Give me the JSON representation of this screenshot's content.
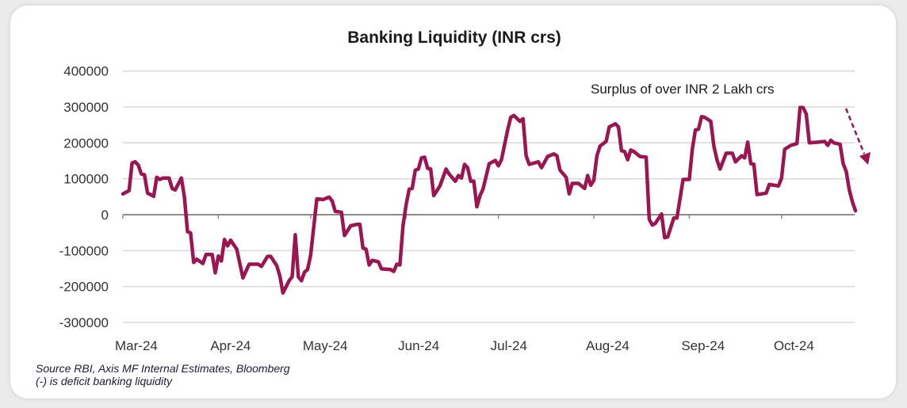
{
  "chart_data": {
    "type": "line",
    "title": "Banking Liquidity (INR crs)",
    "xlabel": "",
    "ylabel": "",
    "x_range": [
      "2024-03-01",
      "2024-10-25"
    ],
    "ylim": [
      -300000,
      400000
    ],
    "y_ticks": [
      400000,
      300000,
      200000,
      100000,
      0,
      -100000,
      -200000,
      -300000
    ],
    "y_tick_labels": [
      "400000",
      "300000",
      "200000",
      "100000",
      "0",
      "-100000",
      "-200000",
      "-300000"
    ],
    "x_ticks": [
      "2024-03-01",
      "2024-04-01",
      "2024-05-01",
      "2024-06-01",
      "2024-07-01",
      "2024-08-01",
      "2024-09-01",
      "2024-10-01"
    ],
    "x_tick_labels": [
      "Mar-24",
      "Apr-24",
      "May-24",
      "Jun-24",
      "Jul-24",
      "Aug-24",
      "Sep-24",
      "Oct-24"
    ],
    "grid": "horizontal",
    "line_color": "#9b1550",
    "annotation": "Surplus of over INR 2 Lakh crs",
    "series": [
      {
        "points": [
          [
            "2024-03-01",
            58000
          ],
          [
            "2024-03-03",
            67000
          ],
          [
            "2024-03-04",
            144000
          ],
          [
            "2024-03-05",
            147000
          ],
          [
            "2024-03-06",
            138000
          ],
          [
            "2024-03-07",
            113000
          ],
          [
            "2024-03-08",
            111000
          ],
          [
            "2024-03-09",
            60000
          ],
          [
            "2024-03-11",
            51000
          ],
          [
            "2024-03-12",
            104000
          ],
          [
            "2024-03-13",
            98000
          ],
          [
            "2024-03-14",
            102000
          ],
          [
            "2024-03-16",
            102000
          ],
          [
            "2024-03-17",
            73000
          ],
          [
            "2024-03-18",
            69000
          ],
          [
            "2024-03-20",
            102000
          ],
          [
            "2024-03-21",
            49000
          ],
          [
            "2024-03-22",
            -47000
          ],
          [
            "2024-03-23",
            -51000
          ],
          [
            "2024-03-24",
            -133000
          ],
          [
            "2024-03-25",
            -124000
          ],
          [
            "2024-03-27",
            -136000
          ],
          [
            "2024-03-28",
            -111000
          ],
          [
            "2024-03-30",
            -111000
          ],
          [
            "2024-03-31",
            -162000
          ],
          [
            "2024-04-01",
            -115000
          ],
          [
            "2024-04-02",
            -129000
          ],
          [
            "2024-04-03",
            -69000
          ],
          [
            "2024-04-04",
            -87000
          ],
          [
            "2024-04-05",
            -71000
          ],
          [
            "2024-04-07",
            -96000
          ],
          [
            "2024-04-09",
            -176000
          ],
          [
            "2024-04-11",
            -138000
          ],
          [
            "2024-04-14",
            -138000
          ],
          [
            "2024-04-15",
            -144000
          ],
          [
            "2024-04-17",
            -116000
          ],
          [
            "2024-04-18",
            -116000
          ],
          [
            "2024-04-20",
            -142000
          ],
          [
            "2024-04-21",
            -171000
          ],
          [
            "2024-04-22",
            -218000
          ],
          [
            "2024-04-24",
            -184000
          ],
          [
            "2024-04-25",
            -173000
          ],
          [
            "2024-04-26",
            -56000
          ],
          [
            "2024-04-27",
            -173000
          ],
          [
            "2024-04-28",
            -184000
          ],
          [
            "2024-04-29",
            -160000
          ],
          [
            "2024-04-30",
            -153000
          ],
          [
            "2024-05-01",
            -113000
          ],
          [
            "2024-05-03",
            44000
          ],
          [
            "2024-05-05",
            42000
          ],
          [
            "2024-05-07",
            49000
          ],
          [
            "2024-05-08",
            38000
          ],
          [
            "2024-05-09",
            9000
          ],
          [
            "2024-05-11",
            7000
          ],
          [
            "2024-05-12",
            -58000
          ],
          [
            "2024-05-14",
            -31000
          ],
          [
            "2024-05-16",
            -27000
          ],
          [
            "2024-05-17",
            -27000
          ],
          [
            "2024-05-18",
            -93000
          ],
          [
            "2024-05-19",
            -96000
          ],
          [
            "2024-05-20",
            -140000
          ],
          [
            "2024-05-21",
            -127000
          ],
          [
            "2024-05-23",
            -131000
          ],
          [
            "2024-05-24",
            -151000
          ],
          [
            "2024-05-27",
            -153000
          ],
          [
            "2024-05-28",
            -158000
          ],
          [
            "2024-05-29",
            -138000
          ],
          [
            "2024-05-30",
            -140000
          ],
          [
            "2024-05-31",
            -31000
          ],
          [
            "2024-06-01",
            27000
          ],
          [
            "2024-06-02",
            71000
          ],
          [
            "2024-06-03",
            73000
          ],
          [
            "2024-06-04",
            124000
          ],
          [
            "2024-06-05",
            127000
          ],
          [
            "2024-06-06",
            158000
          ],
          [
            "2024-06-07",
            160000
          ],
          [
            "2024-06-08",
            129000
          ],
          [
            "2024-06-09",
            127000
          ],
          [
            "2024-06-10",
            53000
          ],
          [
            "2024-06-12",
            80000
          ],
          [
            "2024-06-14",
            127000
          ],
          [
            "2024-06-15",
            113000
          ],
          [
            "2024-06-17",
            93000
          ],
          [
            "2024-06-18",
            109000
          ],
          [
            "2024-06-19",
            102000
          ],
          [
            "2024-06-20",
            140000
          ],
          [
            "2024-06-21",
            131000
          ],
          [
            "2024-06-22",
            93000
          ],
          [
            "2024-06-23",
            93000
          ],
          [
            "2024-06-24",
            22000
          ],
          [
            "2024-06-25",
            53000
          ],
          [
            "2024-06-26",
            71000
          ],
          [
            "2024-06-28",
            142000
          ],
          [
            "2024-06-30",
            151000
          ],
          [
            "2024-07-01",
            136000
          ],
          [
            "2024-07-02",
            153000
          ],
          [
            "2024-07-04",
            236000
          ],
          [
            "2024-07-05",
            271000
          ],
          [
            "2024-07-06",
            276000
          ],
          [
            "2024-07-08",
            260000
          ],
          [
            "2024-07-09",
            267000
          ],
          [
            "2024-07-10",
            164000
          ],
          [
            "2024-07-11",
            140000
          ],
          [
            "2024-07-14",
            147000
          ],
          [
            "2024-07-15",
            131000
          ],
          [
            "2024-07-17",
            162000
          ],
          [
            "2024-07-19",
            169000
          ],
          [
            "2024-07-20",
            164000
          ],
          [
            "2024-07-21",
            124000
          ],
          [
            "2024-07-23",
            104000
          ],
          [
            "2024-07-24",
            58000
          ],
          [
            "2024-07-25",
            87000
          ],
          [
            "2024-07-27",
            87000
          ],
          [
            "2024-07-29",
            73000
          ],
          [
            "2024-07-30",
            109000
          ],
          [
            "2024-07-31",
            82000
          ],
          [
            "2024-08-01",
            96000
          ],
          [
            "2024-08-02",
            164000
          ],
          [
            "2024-08-03",
            191000
          ],
          [
            "2024-08-05",
            204000
          ],
          [
            "2024-08-06",
            244000
          ],
          [
            "2024-08-08",
            253000
          ],
          [
            "2024-08-09",
            244000
          ],
          [
            "2024-08-10",
            178000
          ],
          [
            "2024-08-11",
            176000
          ],
          [
            "2024-08-12",
            153000
          ],
          [
            "2024-08-13",
            180000
          ],
          [
            "2024-08-14",
            176000
          ],
          [
            "2024-08-16",
            162000
          ],
          [
            "2024-08-18",
            160000
          ],
          [
            "2024-08-19",
            -13000
          ],
          [
            "2024-08-20",
            -29000
          ],
          [
            "2024-08-21",
            -24000
          ],
          [
            "2024-08-23",
            2000
          ],
          [
            "2024-08-24",
            -64000
          ],
          [
            "2024-08-25",
            -62000
          ],
          [
            "2024-08-27",
            -9000
          ],
          [
            "2024-08-28",
            -9000
          ],
          [
            "2024-08-30",
            98000
          ],
          [
            "2024-09-01",
            98000
          ],
          [
            "2024-09-02",
            182000
          ],
          [
            "2024-09-03",
            236000
          ],
          [
            "2024-09-04",
            238000
          ],
          [
            "2024-09-05",
            273000
          ],
          [
            "2024-09-06",
            271000
          ],
          [
            "2024-09-08",
            260000
          ],
          [
            "2024-09-09",
            191000
          ],
          [
            "2024-09-10",
            153000
          ],
          [
            "2024-09-11",
            127000
          ],
          [
            "2024-09-13",
            171000
          ],
          [
            "2024-09-15",
            171000
          ],
          [
            "2024-09-16",
            147000
          ],
          [
            "2024-09-18",
            164000
          ],
          [
            "2024-09-19",
            158000
          ],
          [
            "2024-09-20",
            202000
          ],
          [
            "2024-09-21",
            142000
          ],
          [
            "2024-09-22",
            140000
          ],
          [
            "2024-09-23",
            56000
          ],
          [
            "2024-09-26",
            60000
          ],
          [
            "2024-09-27",
            84000
          ],
          [
            "2024-09-30",
            80000
          ],
          [
            "2024-10-01",
            102000
          ],
          [
            "2024-10-02",
            182000
          ],
          [
            "2024-10-04",
            193000
          ],
          [
            "2024-10-06",
            198000
          ],
          [
            "2024-10-07",
            298000
          ],
          [
            "2024-10-08",
            298000
          ],
          [
            "2024-10-09",
            280000
          ],
          [
            "2024-10-10",
            200000
          ],
          [
            "2024-10-13",
            202000
          ],
          [
            "2024-10-15",
            204000
          ],
          [
            "2024-10-16",
            193000
          ],
          [
            "2024-10-17",
            207000
          ],
          [
            "2024-10-18",
            200000
          ],
          [
            "2024-10-20",
            196000
          ],
          [
            "2024-10-21",
            142000
          ],
          [
            "2024-10-22",
            120000
          ],
          [
            "2024-10-23",
            69000
          ],
          [
            "2024-10-24",
            36000
          ],
          [
            "2024-10-25",
            11000
          ]
        ]
      }
    ]
  },
  "footnotes": {
    "source": "Source RBI, Axis MF Internal Estimates, Bloomberg",
    "note": "(-) is deficit banking liquidity"
  }
}
